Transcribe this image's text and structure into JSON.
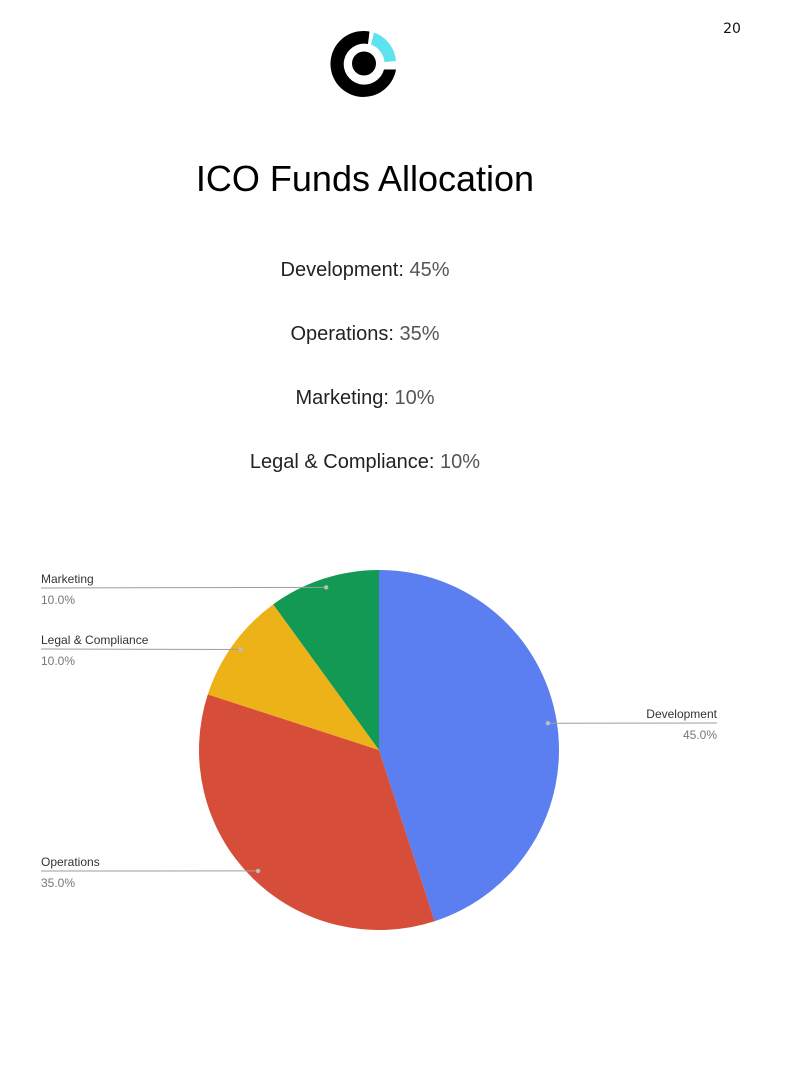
{
  "page_number": "20",
  "logo": {
    "icon": "circular-ring-logo-icon",
    "colors": {
      "ring": "#000000",
      "accent": "#5ee3ee"
    }
  },
  "title": "ICO Funds Allocation",
  "allocations": [
    {
      "label": "Development:",
      "value": "45%"
    },
    {
      "label": "Operations:",
      "value": "35%"
    },
    {
      "label": "Marketing:",
      "value": "10%"
    },
    {
      "label": "Legal & Compliance:",
      "value": "10%"
    }
  ],
  "chart_data": {
    "type": "pie",
    "title": "",
    "start_angle_deg": 0,
    "direction": "clockwise",
    "legend": "none",
    "slices": [
      {
        "name": "Development",
        "value": 45.0,
        "label": "45.0%",
        "color": "#5b7ff0"
      },
      {
        "name": "Operations",
        "value": 35.0,
        "label": "35.0%",
        "color": "#d64e3a"
      },
      {
        "name": "Legal & Compliance",
        "value": 10.0,
        "label": "10.0%",
        "color": "#ecb217"
      },
      {
        "name": "Marketing",
        "value": 10.0,
        "label": "10.0%",
        "color": "#129a55"
      }
    ]
  }
}
